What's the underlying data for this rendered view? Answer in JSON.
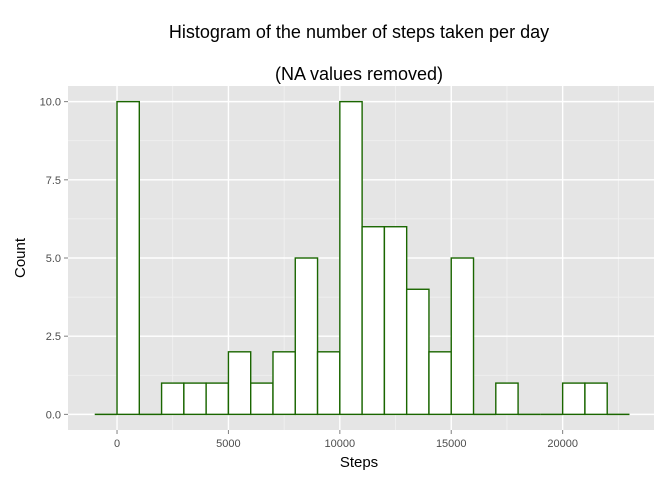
{
  "chart_data": {
    "type": "bar",
    "title": "Histogram of the number of steps taken per day",
    "subtitle": "(NA values removed)",
    "xlabel": "Steps",
    "ylabel": "Count",
    "xlim": [
      -2200,
      24100
    ],
    "ylim": [
      -0.5,
      10.5
    ],
    "x_ticks": [
      0,
      5000,
      10000,
      15000,
      20000
    ],
    "x_tick_labels": [
      "0",
      "5000",
      "10000",
      "15000",
      "20000"
    ],
    "y_ticks": [
      0,
      2.5,
      5,
      7.5,
      10
    ],
    "y_tick_labels": [
      "0.0",
      "2.5",
      "5.0",
      "7.5",
      "10.0"
    ],
    "bin_width": 1000,
    "bins": [
      {
        "start": -1000,
        "end": 0,
        "count": 0
      },
      {
        "start": 0,
        "end": 1000,
        "count": 10
      },
      {
        "start": 1000,
        "end": 2000,
        "count": 0
      },
      {
        "start": 2000,
        "end": 3000,
        "count": 1
      },
      {
        "start": 3000,
        "end": 4000,
        "count": 1
      },
      {
        "start": 4000,
        "end": 5000,
        "count": 1
      },
      {
        "start": 5000,
        "end": 6000,
        "count": 2
      },
      {
        "start": 6000,
        "end": 7000,
        "count": 1
      },
      {
        "start": 7000,
        "end": 8000,
        "count": 2
      },
      {
        "start": 8000,
        "end": 9000,
        "count": 5
      },
      {
        "start": 9000,
        "end": 10000,
        "count": 2
      },
      {
        "start": 10000,
        "end": 11000,
        "count": 10
      },
      {
        "start": 11000,
        "end": 12000,
        "count": 6
      },
      {
        "start": 12000,
        "end": 13000,
        "count": 6
      },
      {
        "start": 13000,
        "end": 14000,
        "count": 4
      },
      {
        "start": 14000,
        "end": 15000,
        "count": 2
      },
      {
        "start": 15000,
        "end": 16000,
        "count": 5
      },
      {
        "start": 16000,
        "end": 17000,
        "count": 0
      },
      {
        "start": 17000,
        "end": 18000,
        "count": 1
      },
      {
        "start": 18000,
        "end": 19000,
        "count": 0
      },
      {
        "start": 19000,
        "end": 20000,
        "count": 0
      },
      {
        "start": 20000,
        "end": 21000,
        "count": 1
      },
      {
        "start": 21000,
        "end": 22000,
        "count": 1
      },
      {
        "start": 22000,
        "end": 23000,
        "count": 0
      }
    ],
    "grid": true,
    "colors": {
      "panel_background": "#e5e5e5",
      "grid_major": "#ffffff",
      "grid_minor": "#f2f2f2",
      "bar_fill": "#ffffff",
      "bar_outline": "#1a6600"
    }
  }
}
